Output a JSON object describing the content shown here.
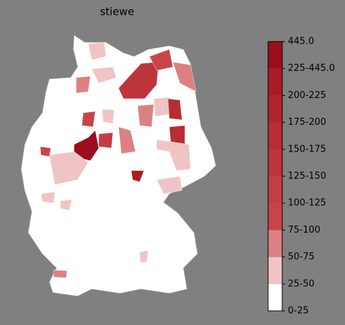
{
  "title": "stiewe",
  "colorbar": {
    "labels": [
      "0-25",
      "25-50",
      "50-75",
      "75-100",
      "100-125",
      "125-150",
      "150-175",
      "175-200",
      "200-225",
      "225-445.0",
      "445.0"
    ],
    "colors": [
      "#ffffff",
      "#f0c4c4",
      "#dc8181",
      "#c94448",
      "#c43d42",
      "#bd353b",
      "#b72d33",
      "#b0252c",
      "#a91c25",
      "#9c0e1e"
    ]
  }
}
